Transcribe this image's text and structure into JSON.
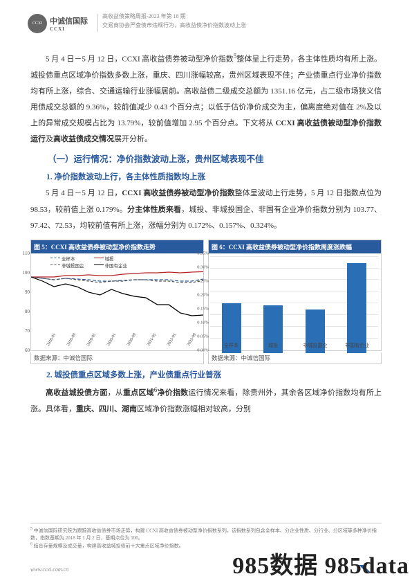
{
  "header": {
    "logo_cn": "中诚信国际",
    "logo_en": "CCXI",
    "line1": "高收益债策略周报-2023 年第 18 期",
    "line2": "交易商协会严查债市违规行为，高收益债净价指数波动上涨"
  },
  "body_para1_pre": "5 月 4 日－5 月 12 日，CCXI 高收益债券被动型净价指数",
  "body_para1_post": "整体呈上行走势，各主体性质均有所上涨。城投债重点区域净价指数多数上涨，重庆、四川涨幅较高，贵州区域表现不佳；产业债重点行业净价指数均有所上涨，综合、交通运输行业涨幅居前。高收益债二级成交总额为 1351.16 亿元，占二级市场狭义信用债成交总额的 9.36%，较前值减少 0.43 个百分点；以低于估价净价成交为主，偏离度绝对值在 2%及以上的异常成交规模占比为 13.79%，较前值增加 2.95 个百分点。下文将从 ",
  "body_para1_bold": "CCXI 高收益债被动型净价指数运行",
  "body_para1_mid": "及",
  "body_para1_bold2": "高收益债成交情况",
  "body_para1_end": "展开分析。",
  "h1": "（一）运行情况：净价指数波动上涨，贵州区域表现不佳",
  "h2a": "1. 净价指数波动上行，各主体性质指数均上涨",
  "para2_pre": "5 月 4 日－5 月 12 日，",
  "para2_bold1": "CCXI 高收益债券被动型净价指数",
  "para2_mid1": "整体呈波动上行走势，5 月 12 日指数点位为 98.53，较前值上涨 0.179%。",
  "para2_bold2": "分主体性质来看",
  "para2_mid2": "，城投、非城投国企、非国有企业净价指数分别为 103.77、97.42、72.53，均较前值有所上涨，涨幅分别为 0.172%、0.157%、0.324%。",
  "chart5": {
    "title": "图 5：CCXI 高收益债券被动型净价指数走势",
    "type": "line",
    "y_ticks": [
      60,
      70,
      80,
      90,
      100,
      110
    ],
    "ylim": [
      60,
      110
    ],
    "x_labels": [
      "2018-01",
      "2018-05",
      "2018-09",
      "2019-01",
      "2019-05",
      "2019-09",
      "2020-01",
      "2020-05",
      "2020-09",
      "2021-01",
      "2021-05",
      "2021-09",
      "2022-01",
      "2022-05",
      "2022-09",
      "2023-01"
    ],
    "series": [
      {
        "name": "全样本",
        "color": "#2a5a9e",
        "dash": "4,2",
        "values": [
          100,
          99,
          98,
          99,
          98.5,
          98,
          97,
          97,
          97.5,
          98,
          98,
          98,
          98,
          97,
          97,
          98.5
        ]
      },
      {
        "name": "城投",
        "color": "#b22222",
        "dash": "0",
        "values": [
          100,
          100,
          100,
          101,
          101,
          101.5,
          101,
          101,
          102,
          102.5,
          103,
          103,
          103.5,
          103,
          103.5,
          103.8
        ]
      },
      {
        "name": "非城投国企",
        "color": "#555555",
        "dash": "3,2",
        "values": [
          100,
          99,
          98,
          99,
          98,
          97,
          96,
          97,
          97,
          98,
          98,
          97,
          97,
          96,
          96,
          97.4
        ]
      },
      {
        "name": "非国有企业",
        "color": "#000000",
        "dash": "0",
        "values": [
          100,
          97,
          93,
          95,
          93,
          89,
          87,
          91,
          88,
          86,
          85,
          80,
          80,
          74,
          72,
          72.5
        ]
      }
    ],
    "label_fontsize": 7,
    "bg": "#ffffff"
  },
  "chart6": {
    "title": "图 6：CCXI 高收益债券被动型净价指数周度涨跌幅",
    "type": "bar",
    "y_ticks": [
      "0.00%",
      "0.05%",
      "0.10%",
      "0.15%",
      "0.20%",
      "0.25%",
      "0.30%",
      "0.35%"
    ],
    "ylim_max": 0.35,
    "categories": [
      "全样本",
      "城投",
      "非城投国企",
      "非国有企业"
    ],
    "values": [
      0.179,
      0.172,
      0.157,
      0.324
    ],
    "bar_color": "#2a6fb5",
    "grid_color": "#e5e5e5",
    "bg": "#ffffff"
  },
  "sources": {
    "left": "数据来源：中诚信国际",
    "right": "数据来源：中诚信国际"
  },
  "h2b": "2. 城投债重点区域多数上涨，产业债重点行业普涨",
  "para3_bold1": "高收益城投债方面",
  "para3_mid1": "，从",
  "para3_bold2": "重点区域",
  "para3_sup": "6",
  "para3_bold3": "净价指数",
  "para3_mid2": "运行情况来看，除贵州外，其余各区域净价指数均有所上涨。具体看，",
  "para3_bold4": "重庆、四川、湖南",
  "para3_mid3": "区域净价指数涨幅相对较高，分别",
  "footnotes": {
    "f5": "中诚信国际研究院为跟踪高收益债券市场走势，构建 CCXI 高收益债券被动型净价指数系列。该指数系列包含全样本、分企业性质、分行业、分区域等多种净价指数，指数基期为 2018 年 1 月 2 日，基期点位为 100。",
    "f6": "结合存量规模及成交量，构建高收益城投债前十大重点区域净价指数。"
  },
  "footer": {
    "url": "www.ccxi.com.cn",
    "page": "4"
  },
  "watermark": "985数据 985data"
}
